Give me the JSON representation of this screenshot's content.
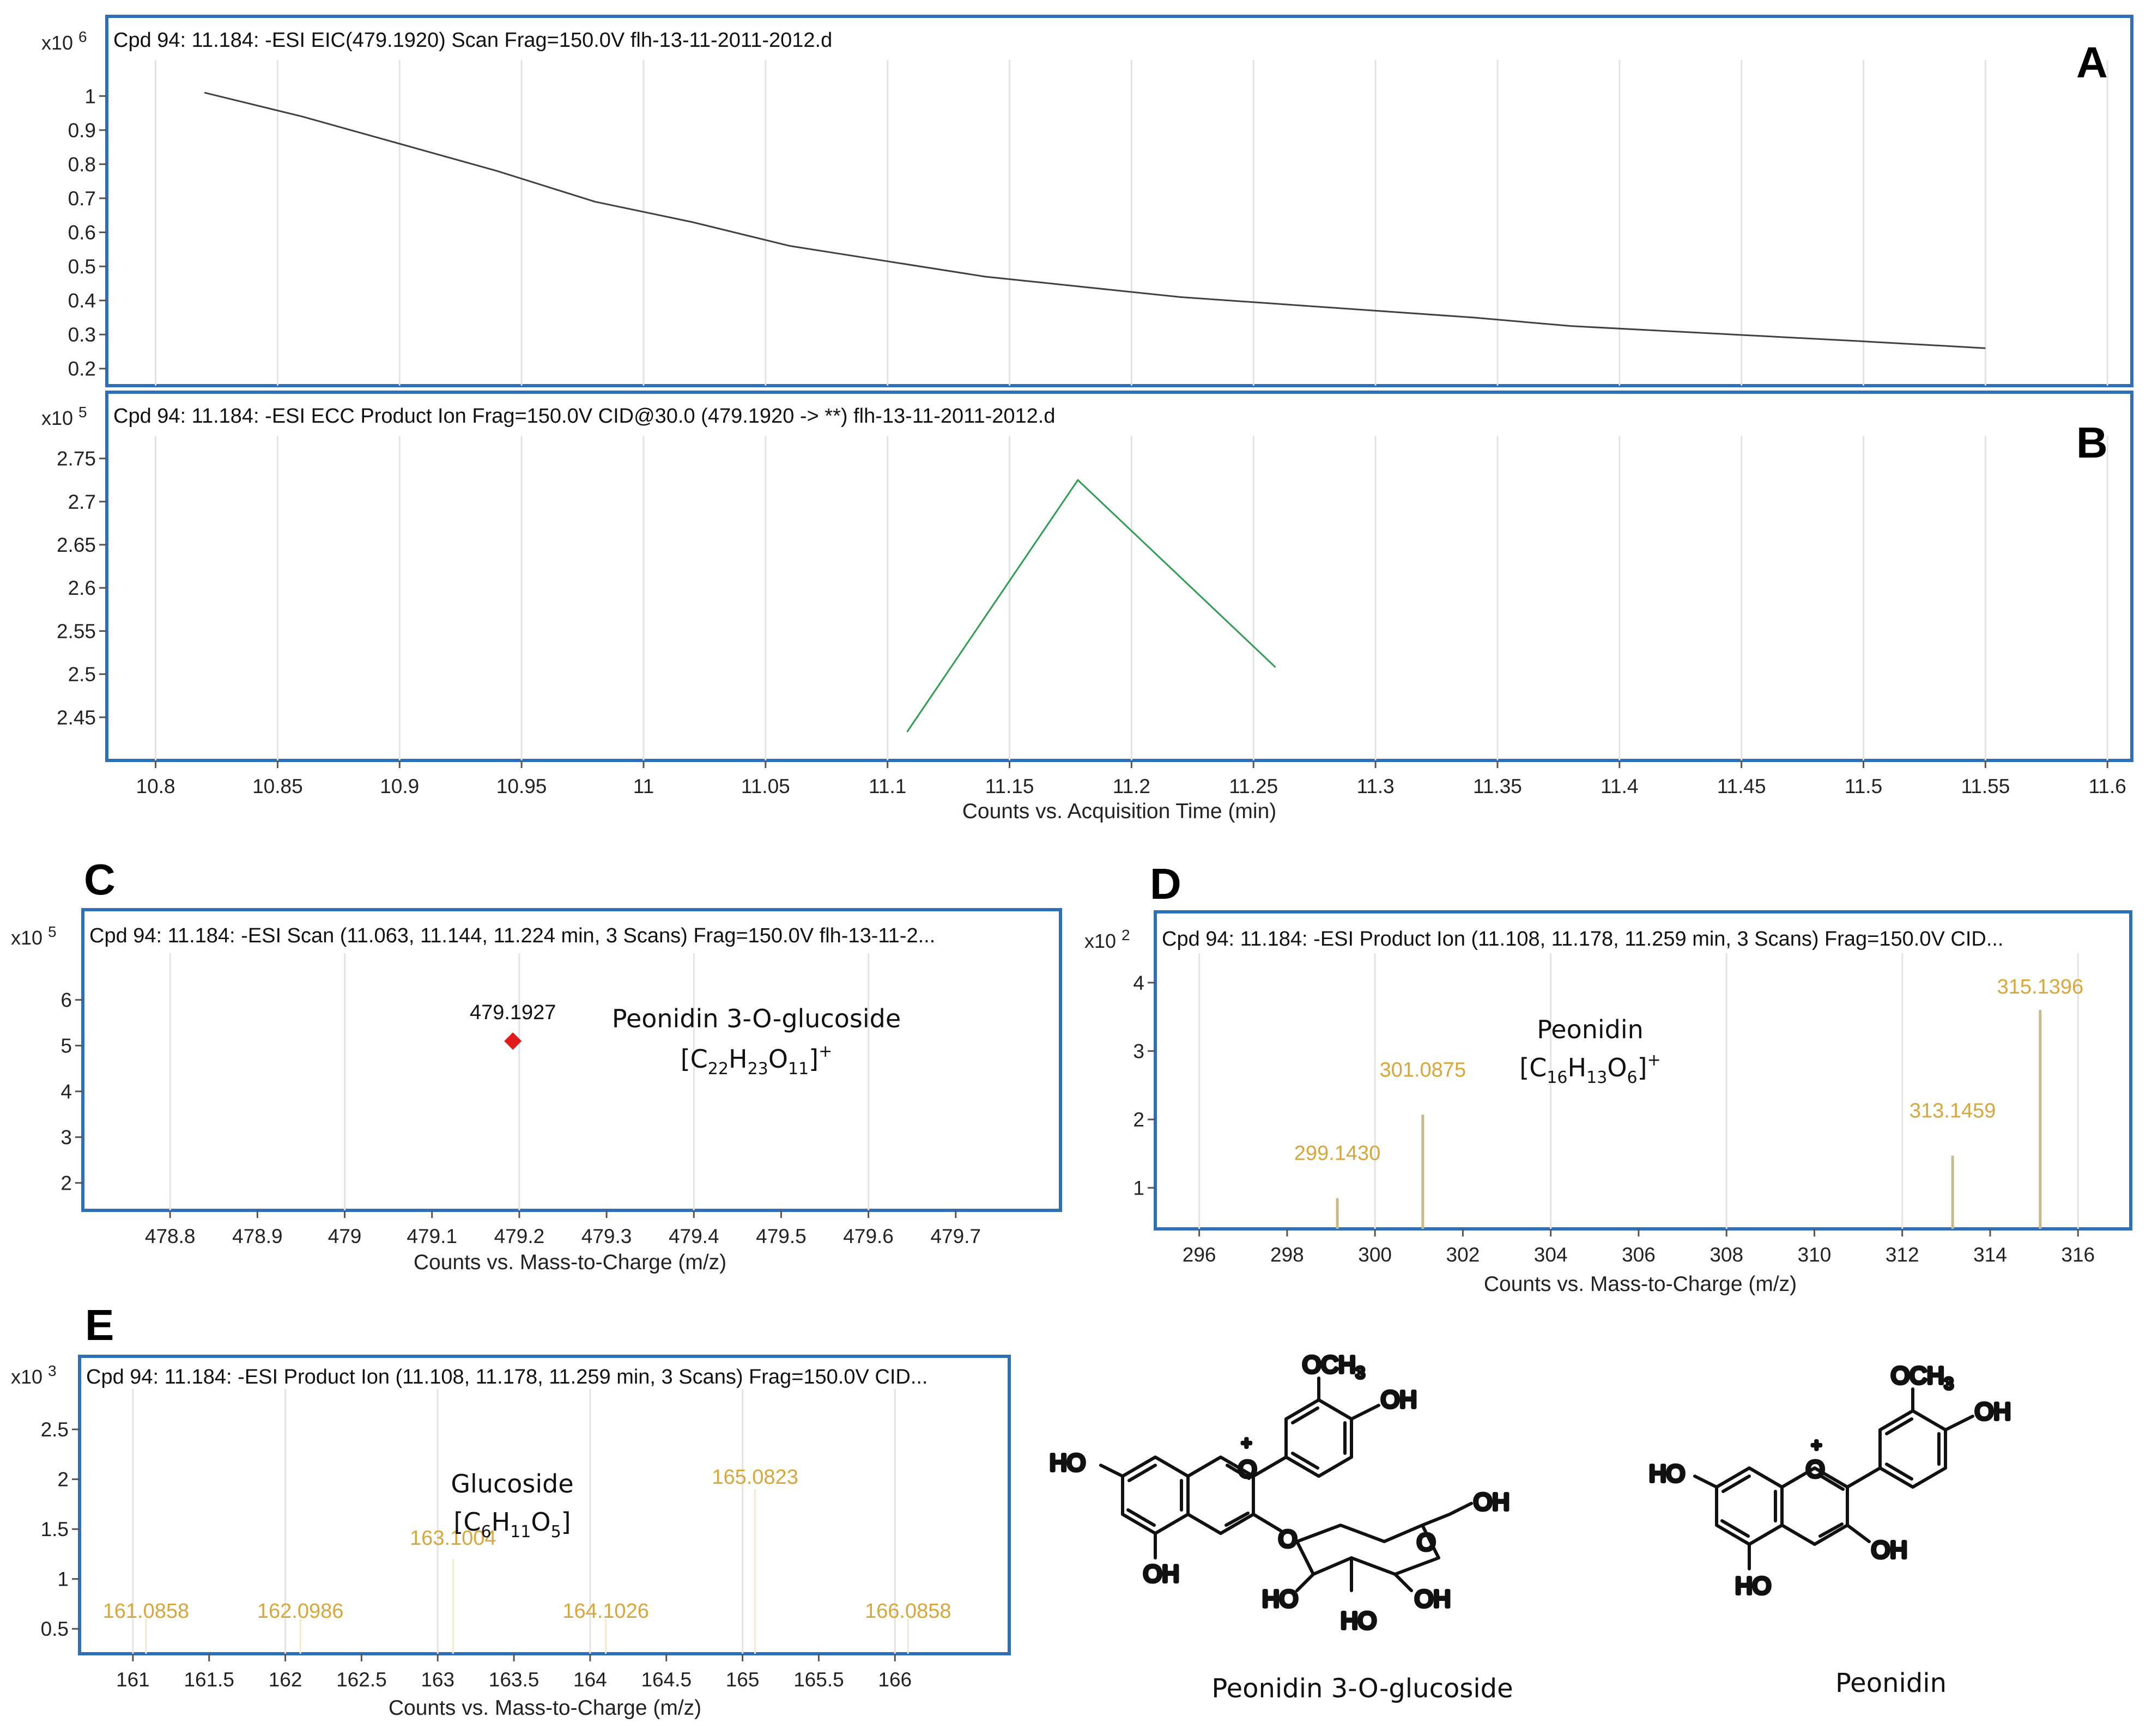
{
  "colors": {
    "frame": "#2e6fb7",
    "trace_a": "#404040",
    "trace_b": "#2e9d4f",
    "peak_label": "#d8a63a",
    "peak_line": "#c8b98a",
    "point_c": "#e11b1b",
    "grid": "#e3e3e3"
  },
  "chart_data": [
    {
      "id": "A",
      "type": "line",
      "title": "Cpd 94: 11.184: -ESI EIC(479.1920) Scan Frag=150.0V flh-13-11-2011-2012.d",
      "scale_label": "x10",
      "scale_exp": "6",
      "panel_letter": "A",
      "xlabel": "",
      "ylabel": "",
      "xlim": [
        10.78,
        11.61
      ],
      "ylim": [
        0.15,
        1.09
      ],
      "xticks": [],
      "yticks": [
        0.2,
        0.3,
        0.4,
        0.5,
        0.6,
        0.7,
        0.8,
        0.9,
        1
      ],
      "ytick_labels": [
        "0.2",
        "0.3",
        "0.4",
        "0.5",
        "0.6",
        "0.7",
        "0.8",
        "0.9",
        "1"
      ],
      "xgrid": [
        10.8,
        10.85,
        10.9,
        10.95,
        11.0,
        11.05,
        11.1,
        11.15,
        11.2,
        11.25,
        11.3,
        11.35,
        11.4,
        11.45,
        11.5,
        11.55,
        11.6
      ],
      "series": [
        {
          "x": [
            10.82,
            10.86,
            10.9,
            10.94,
            10.98,
            11.02,
            11.06,
            11.1,
            11.14,
            11.18,
            11.22,
            11.26,
            11.3,
            11.34,
            11.38,
            11.42,
            11.46,
            11.5,
            11.55
          ],
          "y": [
            1.01,
            0.94,
            0.86,
            0.78,
            0.69,
            0.63,
            0.56,
            0.515,
            0.47,
            0.44,
            0.41,
            0.39,
            0.37,
            0.35,
            0.325,
            0.31,
            0.295,
            0.28,
            0.26
          ]
        }
      ]
    },
    {
      "id": "B",
      "type": "line",
      "title": "Cpd 94: 11.184: -ESI ECC Product Ion Frag=150.0V CID@30.0 (479.1920 -> **) flh-13-11-2011-2012.d",
      "scale_label": "x10",
      "scale_exp": "5",
      "panel_letter": "B",
      "xlabel": "Counts vs. Acquisition Time (min)",
      "ylabel": "",
      "xlim": [
        10.78,
        11.61
      ],
      "ylim": [
        2.4,
        2.77
      ],
      "xticks": [
        10.8,
        10.85,
        10.9,
        10.95,
        11,
        11.05,
        11.1,
        11.15,
        11.2,
        11.25,
        11.3,
        11.35,
        11.4,
        11.45,
        11.5,
        11.55,
        11.6
      ],
      "xtick_labels": [
        "10.8",
        "10.85",
        "10.9",
        "10.95",
        "11",
        "11.05",
        "11.1",
        "11.15",
        "11.2",
        "11.25",
        "11.3",
        "11.35",
        "11.4",
        "11.45",
        "11.5",
        "11.55",
        "11.6"
      ],
      "yticks": [
        2.45,
        2.5,
        2.55,
        2.6,
        2.65,
        2.7,
        2.75
      ],
      "ytick_labels": [
        "2.45",
        "2.5",
        "2.55",
        "2.6",
        "2.65",
        "2.7",
        "2.75"
      ],
      "xgrid": [
        10.8,
        10.85,
        10.9,
        10.95,
        11.0,
        11.05,
        11.1,
        11.15,
        11.2,
        11.25,
        11.3,
        11.35,
        11.4,
        11.45,
        11.5,
        11.55,
        11.6
      ],
      "series": [
        {
          "x": [
            11.108,
            11.178,
            11.259
          ],
          "y": [
            2.433,
            2.725,
            2.508
          ]
        }
      ]
    },
    {
      "id": "C",
      "type": "scatter",
      "title": "Cpd 94: 11.184: -ESI Scan (11.063, 11.144, 11.224 min, 3 Scans) Frag=150.0V flh-13-11-2...",
      "scale_label": "x10",
      "scale_exp": "5",
      "panel_letter": "C",
      "xlabel": "Counts vs. Mass-to-Charge (m/z)",
      "ylabel": "",
      "xlim": [
        478.7,
        479.82
      ],
      "ylim": [
        1.4,
        6.9
      ],
      "xticks": [
        478.8,
        478.9,
        479,
        479.1,
        479.2,
        479.3,
        479.4,
        479.5,
        479.6,
        479.7
      ],
      "xtick_labels": [
        "478.8",
        "478.9",
        "479",
        "479.1",
        "479.2",
        "479.3",
        "479.4",
        "479.5",
        "479.6",
        "479.7"
      ],
      "yticks": [
        2,
        3,
        4,
        5,
        6
      ],
      "ytick_labels": [
        "2",
        "3",
        "4",
        "5",
        "6"
      ],
      "xgrid": [
        478.8,
        479.0,
        479.2,
        479.4,
        479.6
      ],
      "points": [
        {
          "x": 479.1927,
          "y": 5.1,
          "label": "479.1927"
        }
      ],
      "annotation": {
        "name": "Peonidin 3-O-glucoside",
        "formula_open": "[C",
        "s1": "22",
        "mid1": "H",
        "s2": "23",
        "mid2": "O",
        "s3": "11",
        "close": "]",
        "sup": "+"
      }
    },
    {
      "id": "D",
      "type": "bar",
      "title": "Cpd 94: 11.184: -ESI Product Ion (11.108, 11.178, 11.259 min, 3 Scans) Frag=150.0V CID...",
      "scale_label": "x10",
      "scale_exp": "2",
      "panel_letter": "D",
      "xlabel": "Counts vs. Mass-to-Charge (m/z)",
      "ylabel": "",
      "xlim": [
        295.0,
        317.2
      ],
      "ylim": [
        0.4,
        4.35
      ],
      "xticks": [
        296,
        298,
        300,
        302,
        304,
        306,
        308,
        310,
        312,
        314,
        316
      ],
      "xtick_labels": [
        "296",
        "298",
        "300",
        "302",
        "304",
        "306",
        "308",
        "310",
        "312",
        "314",
        "316"
      ],
      "yticks": [
        1,
        2,
        3,
        4
      ],
      "ytick_labels": [
        "1",
        "2",
        "3",
        "4"
      ],
      "xgrid": [
        296,
        300,
        304,
        308,
        312,
        316
      ],
      "peaks": [
        {
          "x": 299.143,
          "y": 0.85,
          "label": "299.1430"
        },
        {
          "x": 301.0875,
          "y": 2.07,
          "label": "301.0875"
        },
        {
          "x": 313.1459,
          "y": 1.47,
          "label": "313.1459"
        },
        {
          "x": 315.1396,
          "y": 3.6,
          "label": "315.1396"
        }
      ],
      "annotation": {
        "name": "Peonidin",
        "formula_open": "[C",
        "s1": "16",
        "mid1": "H",
        "s2": "13",
        "mid2": "O",
        "s3": "6",
        "close": "]",
        "sup": "+"
      }
    },
    {
      "id": "E",
      "type": "bar",
      "title": "Cpd 94: 11.184: -ESI Product Ion (11.108, 11.178, 11.259 min, 3 Scans) Frag=150.0V CID...",
      "scale_label": "x10",
      "scale_exp": "3",
      "panel_letter": "E",
      "xlabel": "Counts vs. Mass-to-Charge (m/z)",
      "ylabel": "",
      "xlim": [
        160.65,
        166.75
      ],
      "ylim": [
        0.25,
        2.85
      ],
      "xticks": [
        161,
        161.5,
        162,
        162.5,
        163,
        163.5,
        164,
        164.5,
        165,
        165.5,
        166
      ],
      "xtick_labels": [
        "161",
        "161.5",
        "162",
        "162.5",
        "163",
        "163.5",
        "164",
        "164.5",
        "165",
        "165.5",
        "166"
      ],
      "yticks": [
        0.5,
        1,
        1.5,
        2,
        2.5
      ],
      "ytick_labels": [
        "0.5",
        "1",
        "1.5",
        "2",
        "2.5"
      ],
      "xgrid": [
        161,
        162,
        163,
        164,
        165,
        166
      ],
      "peaks": [
        {
          "x": 161.0858,
          "y": 0.6,
          "label": "161.0858"
        },
        {
          "x": 162.0986,
          "y": 0.6,
          "label": "162.0986"
        },
        {
          "x": 163.1004,
          "y": 1.2,
          "label": "163.1004"
        },
        {
          "x": 164.1026,
          "y": 0.6,
          "label": "164.1026"
        },
        {
          "x": 165.0823,
          "y": 1.9,
          "label": "165.0823"
        },
        {
          "x": 166.0858,
          "y": 0.6,
          "label": "166.0858"
        }
      ],
      "annotation": {
        "name": "Glucoside",
        "formula_open": "[C",
        "s1": "6",
        "mid1": "H",
        "s2": "11",
        "mid2": "O",
        "s3": "5",
        "close": "]",
        "sup": ""
      }
    }
  ],
  "structures": {
    "glucoside": {
      "name": "Peonidin 3-O-glucoside",
      "och3": "OCH",
      "och3_sub": "3",
      "oh": "OH",
      "ho": "HO",
      "plus": "+"
    },
    "peonidin": {
      "name": "Peonidin",
      "och3": "OCH",
      "och3_sub": "3",
      "oh": "OH",
      "ho": "HO",
      "plus": "+"
    }
  }
}
